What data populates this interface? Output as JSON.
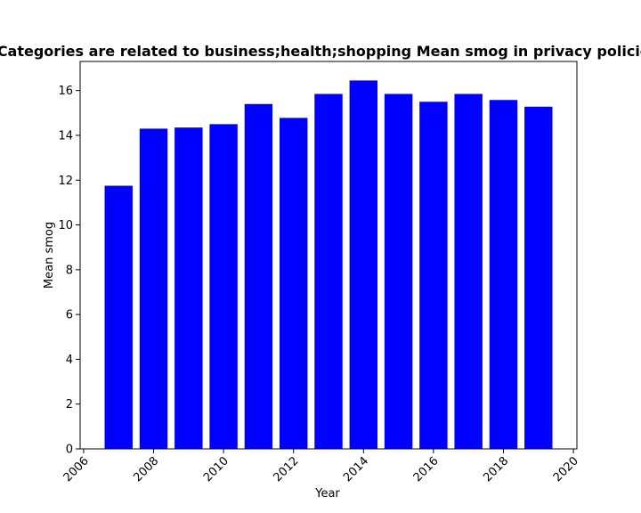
{
  "chart_data": {
    "type": "bar",
    "title": "Categories are related to business;health;shopping Mean smog in privacy policies",
    "xlabel": "Year",
    "ylabel": "Mean smog",
    "x": [
      2007,
      2008,
      2009,
      2010,
      2011,
      2012,
      2013,
      2014,
      2015,
      2016,
      2017,
      2018,
      2019
    ],
    "values": [
      11.75,
      14.3,
      14.35,
      14.5,
      15.4,
      14.78,
      15.85,
      16.45,
      15.85,
      15.5,
      15.85,
      15.58,
      15.28
    ],
    "xlim": [
      2005.9,
      2020.1
    ],
    "ylim": [
      0,
      17.3
    ],
    "xticks": [
      2006,
      2008,
      2010,
      2012,
      2014,
      2016,
      2018,
      2020
    ],
    "yticks": [
      0,
      2,
      4,
      6,
      8,
      10,
      12,
      14,
      16
    ],
    "xtick_rotation": 45,
    "grid": false,
    "legend": "none",
    "bar_color": "#0000ff"
  }
}
